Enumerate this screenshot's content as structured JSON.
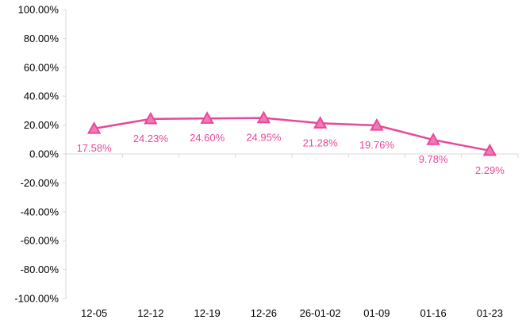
{
  "chart_data": {
    "type": "line",
    "categories": [
      "12-05",
      "12-12",
      "12-19",
      "12-26",
      "26-01-02",
      "01-09",
      "01-16",
      "01-23"
    ],
    "series": [
      {
        "values": [
          17.58,
          24.23,
          24.6,
          24.95,
          21.28,
          19.76,
          9.78,
          2.29
        ],
        "data_labels": [
          "17.58%",
          "24.23%",
          "24.60%",
          "24.95%",
          "21.28%",
          "19.76%",
          "9.78%",
          "2.29%"
        ],
        "color": "#e8489a",
        "marker": "triangle"
      }
    ],
    "yticks": [
      100,
      80,
      60,
      40,
      20,
      0,
      -20,
      -40,
      -60,
      -80,
      -100
    ],
    "ytick_labels": [
      "100.00%",
      "80.00%",
      "60.00%",
      "40.00%",
      "20.00%",
      "0.00%",
      "-20.00%",
      "-40.00%",
      "-60.00%",
      "-80.00%",
      "-100.00%"
    ],
    "ylim": [
      -100,
      100
    ],
    "grid": false,
    "colors": {
      "series": "#e8489a",
      "marker_fill": "#f07ab3",
      "axis": "#d9d9d9",
      "text": "#000000"
    }
  }
}
